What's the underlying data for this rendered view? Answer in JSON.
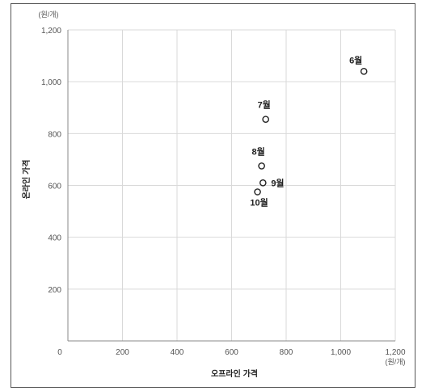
{
  "chart_data": {
    "type": "scatter",
    "xlabel": "오프라인 가격",
    "ylabel": "온라인 가격",
    "x_unit": "(원/개)",
    "y_unit": "(원/개)",
    "xlim": [
      0,
      1200
    ],
    "ylim": [
      0,
      1200
    ],
    "x_ticks": [
      "0",
      "200",
      "400",
      "600",
      "800",
      "1,000",
      "1,200"
    ],
    "y_ticks": [
      "200",
      "400",
      "600",
      "800",
      "1,000",
      "1,200"
    ],
    "grid": true,
    "points": [
      {
        "label": "6월",
        "x": 1085,
        "y": 1040
      },
      {
        "label": "7월",
        "x": 725,
        "y": 855
      },
      {
        "label": "8월",
        "x": 710,
        "y": 675
      },
      {
        "label": "9월",
        "x": 715,
        "y": 610
      },
      {
        "label": "10월",
        "x": 695,
        "y": 575
      }
    ]
  }
}
